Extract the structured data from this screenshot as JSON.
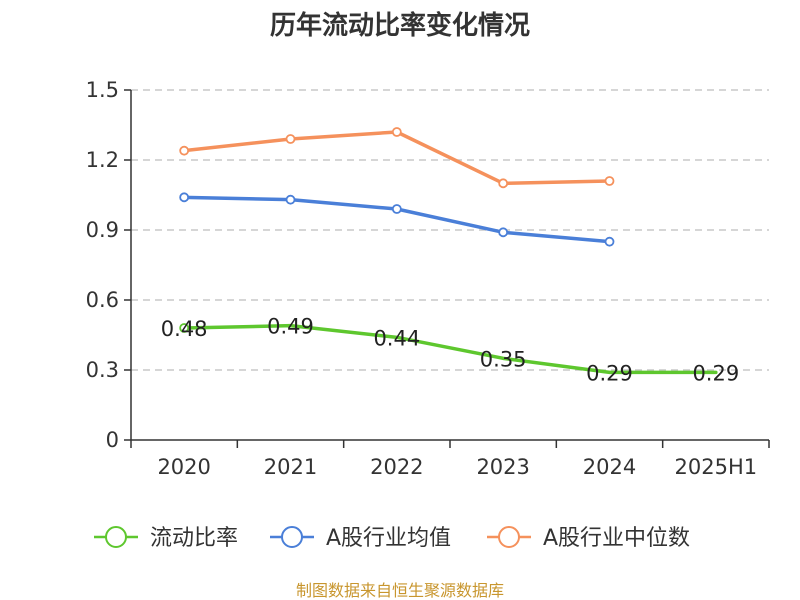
{
  "chart_data": {
    "type": "line",
    "title": "历年流动比率变化情况",
    "categories": [
      "2020",
      "2021",
      "2022",
      "2023",
      "2024",
      "2025H1"
    ],
    "ylim": [
      0,
      1.5
    ],
    "yticks": [
      0,
      0.3,
      0.6,
      0.9,
      1.2,
      1.5
    ],
    "ytick_labels": [
      "0",
      "0.3",
      "0.6",
      "0.9",
      "1.2",
      "1.5"
    ],
    "grid": "horizontal-dashed",
    "legend_position": "bottom",
    "series": [
      {
        "name": "流动比率",
        "color": "#5ec72e",
        "values": [
          0.48,
          0.49,
          0.44,
          0.35,
          0.29,
          0.29
        ],
        "labels": [
          "0.48",
          "0.49",
          "0.44",
          "0.35",
          "0.29",
          "0.29"
        ],
        "markers": "first-only"
      },
      {
        "name": "A股行业均值",
        "color": "#4a7fd8",
        "values": [
          1.04,
          1.03,
          0.99,
          0.89,
          0.85,
          null
        ]
      },
      {
        "name": "A股行业中位数",
        "color": "#f5915c",
        "values": [
          1.24,
          1.29,
          1.32,
          1.1,
          1.11,
          null
        ]
      }
    ]
  },
  "source_text": "制图数据来自恒生聚源数据库"
}
